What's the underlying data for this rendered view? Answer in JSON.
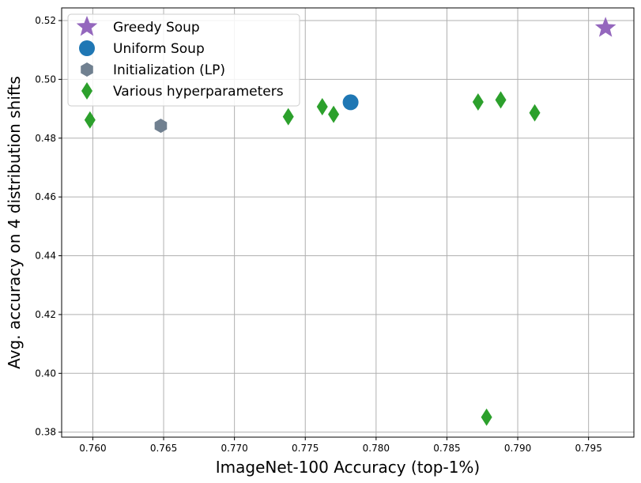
{
  "chart_data": {
    "type": "scatter",
    "xlabel": "ImageNet-100 Accuracy (top-1%)",
    "ylabel": "Avg. accuracy on 4 distribution shifts",
    "xlim": [
      0.7578,
      0.7982
    ],
    "ylim": [
      0.3783,
      0.5243
    ],
    "xticks": [
      0.76,
      0.765,
      0.77,
      0.775,
      0.78,
      0.785,
      0.79,
      0.795
    ],
    "yticks": [
      0.38,
      0.4,
      0.42,
      0.44,
      0.46,
      0.48,
      0.5,
      0.52
    ],
    "grid": true,
    "legend_position": "top-left",
    "series": [
      {
        "name": "Greedy Soup",
        "marker": "star",
        "color": "#9467bd",
        "points": [
          {
            "x": 0.7962,
            "y": 0.5175
          }
        ]
      },
      {
        "name": "Uniform Soup",
        "marker": "circle",
        "color": "#1f77b4",
        "points": [
          {
            "x": 0.7782,
            "y": 0.4922
          }
        ]
      },
      {
        "name": "Initialization (LP)",
        "marker": "hexagon",
        "color": "#708090",
        "points": [
          {
            "x": 0.7648,
            "y": 0.4842
          }
        ]
      },
      {
        "name": "Various hyperparameters",
        "marker": "diamond",
        "color": "#2ca02c",
        "points": [
          {
            "x": 0.7598,
            "y": 0.4862
          },
          {
            "x": 0.7738,
            "y": 0.4873
          },
          {
            "x": 0.7762,
            "y": 0.4907
          },
          {
            "x": 0.777,
            "y": 0.4881
          },
          {
            "x": 0.7872,
            "y": 0.4923
          },
          {
            "x": 0.7888,
            "y": 0.493
          },
          {
            "x": 0.7912,
            "y": 0.4886
          },
          {
            "x": 0.7878,
            "y": 0.3851
          }
        ]
      }
    ]
  }
}
